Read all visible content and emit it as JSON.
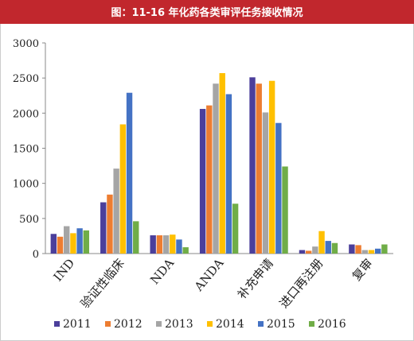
{
  "chart_data": {
    "type": "bar",
    "title": "图：11-16 年化药各类审评任务接收情况",
    "categories": [
      "IND",
      "验证性临床",
      "NDA",
      "ANDA",
      "补充申请",
      "进口再注册",
      "复审"
    ],
    "series": [
      {
        "name": "2011",
        "color": "#4b3f9b",
        "values": [
          280,
          730,
          260,
          2060,
          2510,
          50,
          130
        ]
      },
      {
        "name": "2012",
        "color": "#ed7d31",
        "values": [
          240,
          840,
          260,
          2110,
          2420,
          40,
          120
        ]
      },
      {
        "name": "2013",
        "color": "#a5a5a5",
        "values": [
          390,
          1210,
          260,
          2420,
          2010,
          100,
          50
        ]
      },
      {
        "name": "2014",
        "color": "#ffc000",
        "values": [
          290,
          1840,
          270,
          2570,
          2460,
          320,
          50
        ]
      },
      {
        "name": "2015",
        "color": "#4472c4",
        "values": [
          360,
          2290,
          200,
          2270,
          1860,
          180,
          70
        ]
      },
      {
        "name": "2016",
        "color": "#70ad47",
        "values": [
          330,
          460,
          90,
          710,
          1240,
          150,
          130
        ]
      }
    ],
    "ylim": [
      0,
      3000
    ],
    "yticks": [
      0,
      500,
      1000,
      1500,
      2000,
      2500,
      3000
    ],
    "grid": false
  }
}
